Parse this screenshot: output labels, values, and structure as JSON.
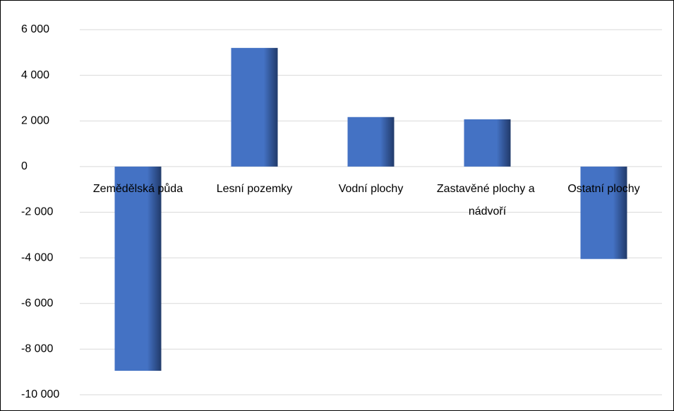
{
  "chart_data": {
    "type": "bar",
    "categories": [
      "Zemědělská půda",
      "Lesní pozemky",
      "Vodní plochy",
      "Zastavěné plochy a nádvoří",
      "Ostatní plochy"
    ],
    "values": [
      -8950,
      5200,
      2170,
      2070,
      -4050
    ],
    "color": "#4472c4",
    "ylim": [
      -10000,
      6000
    ],
    "yticks": [
      {
        "value": -10000,
        "label": "-10 000"
      },
      {
        "value": -8000,
        "label": "-8 000"
      },
      {
        "value": -6000,
        "label": "-6 000"
      },
      {
        "value": -4000,
        "label": "-4 000"
      },
      {
        "value": -2000,
        "label": "-2 000"
      },
      0,
      {
        "value": 2000,
        "label": "2 000"
      },
      {
        "value": 4000,
        "label": "4 000"
      },
      {
        "value": 6000,
        "label": "6 000"
      }
    ],
    "grid": true
  }
}
